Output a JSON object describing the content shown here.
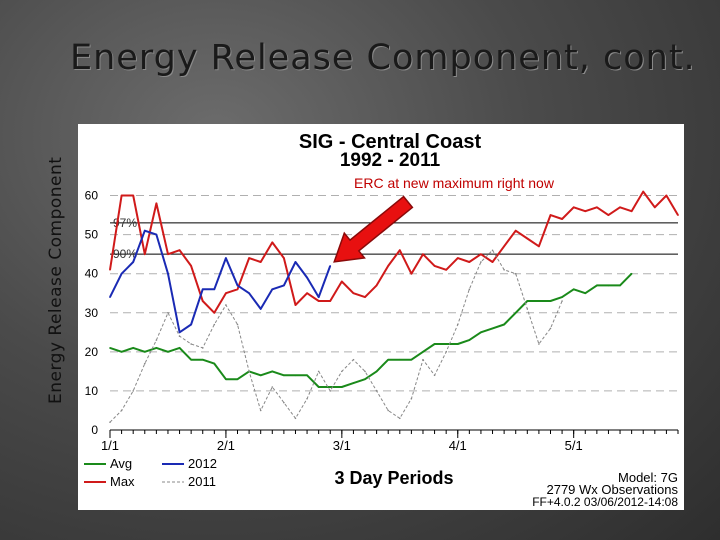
{
  "slide": {
    "title": "Energy Release Component, cont."
  },
  "chart_data": {
    "type": "line",
    "title": "SIG - Central Coast",
    "subtitle": "1992 - 2011",
    "ylabel": "Energy Release Component",
    "xlabel": "3 Day Periods",
    "annotation": "ERC at new maximum right now",
    "ylim": [
      0,
      65
    ],
    "x_tick_labels": [
      "1/1",
      "2/1",
      "3/1",
      "4/1",
      "5/1"
    ],
    "y_ticks": [
      0,
      10,
      20,
      30,
      40,
      50,
      60
    ],
    "percentile_lines": [
      {
        "label": "97%",
        "value": 53
      },
      {
        "label": "90%",
        "value": 45
      }
    ],
    "legend": [
      {
        "name": "Avg",
        "color": "#1a8a1a",
        "style": "solid"
      },
      {
        "name": "Max",
        "color": "#d01a1a",
        "style": "solid"
      },
      {
        "name": "2012",
        "color": "#1a2ab4",
        "style": "solid"
      },
      {
        "name": "2011",
        "color": "#888888",
        "style": "dashed"
      }
    ],
    "footer": {
      "model": "Model: 7G",
      "observations": "2779 Wx Observations",
      "version": "FF+4.0.2 03/06/2012-14:08"
    },
    "series": [
      {
        "name": "Avg",
        "color": "#1a8a1a",
        "style": "solid",
        "width": 2,
        "values": [
          21,
          20,
          21,
          20,
          21,
          20,
          21,
          18,
          18,
          17,
          13,
          13,
          15,
          14,
          15,
          14,
          14,
          14,
          11,
          11,
          11,
          12,
          13,
          15,
          18,
          18,
          18,
          20,
          22,
          22,
          22,
          23,
          25,
          26,
          27,
          30,
          33,
          33,
          33,
          34,
          36,
          35,
          37,
          37,
          37,
          40
        ]
      },
      {
        "name": "Max",
        "color": "#d01a1a",
        "style": "solid",
        "width": 2,
        "values": [
          41,
          60,
          60,
          45,
          58,
          45,
          46,
          42,
          33,
          30,
          35,
          36,
          44,
          43,
          48,
          44,
          32,
          35,
          33,
          33,
          38,
          35,
          34,
          37,
          42,
          46,
          40,
          45,
          42,
          41,
          44,
          43,
          45,
          43,
          47,
          51,
          49,
          47,
          55,
          54,
          57,
          56,
          57,
          55,
          57,
          56,
          61,
          57,
          60,
          55
        ]
      },
      {
        "name": "2012",
        "color": "#1a2ab4",
        "style": "solid",
        "width": 2,
        "values": [
          34,
          40,
          43,
          51,
          50,
          40,
          25,
          27,
          36,
          36,
          44,
          37,
          35,
          31,
          36,
          37,
          43,
          39,
          34,
          42
        ]
      },
      {
        "name": "2011",
        "color": "#888888",
        "style": "dashed",
        "width": 1,
        "values": [
          2,
          5,
          10,
          17,
          23,
          30,
          24,
          22,
          21,
          27,
          32,
          27,
          15,
          5,
          11,
          7,
          3,
          8,
          15,
          10,
          15,
          18,
          15,
          10,
          5,
          3,
          8,
          18,
          14,
          20,
          27,
          36,
          43,
          46,
          41,
          40,
          31,
          22,
          26,
          33
        ]
      }
    ]
  }
}
